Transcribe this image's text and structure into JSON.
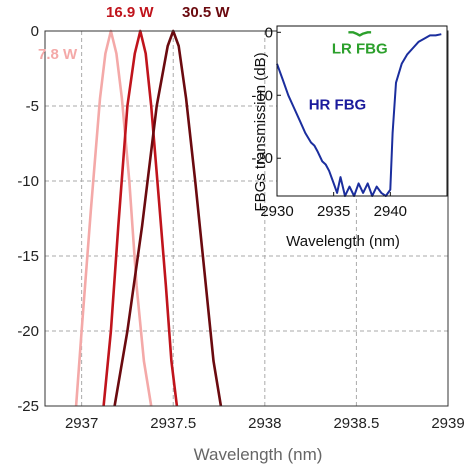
{
  "chart_data": [
    {
      "type": "line",
      "xlabel": "Wavelength (nm)",
      "ylabel": "",
      "xlim": [
        2936.8,
        2939.0
      ],
      "ylim": [
        -25,
        0
      ],
      "xticks": [
        "2937",
        "2937.5",
        "2938",
        "2938.5",
        "2939"
      ],
      "xtick_values": [
        2937,
        2937.5,
        2938,
        2938.5,
        2939
      ],
      "yticks": [
        "0",
        "-5",
        "-10",
        "-15",
        "-20",
        "-25"
      ],
      "ytick_values": [
        0,
        -5,
        -10,
        -15,
        -20,
        -25
      ],
      "grid": true,
      "series": [
        {
          "name": "7.8 W",
          "color": "#f4a9a8",
          "x": [
            2936.97,
            2937.0,
            2937.05,
            2937.1,
            2937.13,
            2937.16,
            2937.19,
            2937.22,
            2937.26,
            2937.3,
            2937.34,
            2937.38
          ],
          "y": [
            -25,
            -20,
            -12,
            -4.5,
            -1.5,
            0,
            -1.5,
            -4.5,
            -10,
            -17,
            -22,
            -25
          ]
        },
        {
          "name": "16.9 W",
          "color": "#c0141c",
          "x": [
            2937.12,
            2937.16,
            2937.2,
            2937.25,
            2937.29,
            2937.32,
            2937.35,
            2937.38,
            2937.42,
            2937.46,
            2937.49,
            2937.52
          ],
          "y": [
            -25,
            -20,
            -13,
            -5,
            -1.5,
            0,
            -1.5,
            -5,
            -11,
            -17,
            -22,
            -25
          ]
        },
        {
          "name": "30.5 W",
          "color": "#6b0a0f",
          "x": [
            2937.18,
            2937.25,
            2937.33,
            2937.41,
            2937.47,
            2937.5,
            2937.53,
            2937.57,
            2937.62,
            2937.67,
            2937.72,
            2937.76
          ],
          "y": [
            -25,
            -20,
            -13,
            -5,
            -1,
            0,
            -1,
            -4.5,
            -10,
            -16,
            -22,
            -25
          ]
        }
      ]
    },
    {
      "type": "line",
      "inset": true,
      "xlabel": "Wavelength (nm)",
      "ylabel": "FBGs transmission (dB)",
      "xlim": [
        2930,
        2945
      ],
      "ylim": [
        -26,
        1
      ],
      "xticks": [
        "2930",
        "2935",
        "2940"
      ],
      "xtick_values": [
        2930,
        2935,
        2940
      ],
      "yticks": [
        "0",
        "-10",
        "-20"
      ],
      "ytick_values": [
        0,
        -10,
        -20
      ],
      "annotations": [
        {
          "text": "LR FBG",
          "color": "#2ca02c",
          "x": 2937.3,
          "y": -2.6
        },
        {
          "text": "HR FBG",
          "color": "#1a1a9c",
          "x": 2932.8,
          "y": -11.5
        }
      ],
      "series": [
        {
          "name": "HR FBG",
          "color": "#1b2e9e",
          "x": [
            2930.0,
            2930.5,
            2931.0,
            2931.5,
            2932.0,
            2932.5,
            2933.0,
            2933.3,
            2933.6,
            2934.0,
            2934.3,
            2934.6,
            2935.0,
            2935.3,
            2935.6,
            2936.0,
            2936.4,
            2936.8,
            2937.2,
            2937.6,
            2938.0,
            2938.4,
            2938.8,
            2939.2,
            2939.6,
            2940.0,
            2940.2,
            2940.5,
            2941.0,
            2941.5,
            2942.0,
            2942.5,
            2943.0,
            2943.5,
            2944.0,
            2944.5
          ],
          "y": [
            -5,
            -7.5,
            -10,
            -12,
            -14,
            -16,
            -17.5,
            -18,
            -19,
            -20.5,
            -21,
            -22,
            -24,
            -25.5,
            -23,
            -26,
            -24.5,
            -26,
            -24,
            -25.5,
            -24,
            -26,
            -24.5,
            -25.5,
            -26,
            -25,
            -16,
            -8,
            -5,
            -3.5,
            -2.5,
            -1.5,
            -1,
            -0.5,
            -0.5,
            -0.3
          ]
        },
        {
          "name": "LR FBG",
          "color": "#2ca02c",
          "x": [
            2936.3,
            2936.7,
            2937.0,
            2937.3,
            2937.6,
            2938.0,
            2938.3
          ],
          "y": [
            0,
            0,
            -0.2,
            -0.5,
            -0.2,
            0,
            0
          ]
        }
      ]
    }
  ]
}
